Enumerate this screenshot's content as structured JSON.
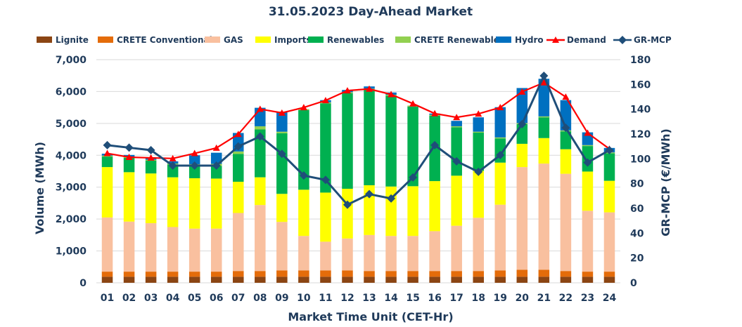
{
  "chart_data": {
    "type": "bar",
    "title": "31.05.2023  Day-Ahead Market",
    "xlabel": "Market Time Unit (CET-Hr)",
    "ylabel": "Volume (MWh)",
    "y2label": "GR-MCP (€/MWh)",
    "ylim": [
      0,
      7000
    ],
    "y2lim": [
      0,
      180
    ],
    "yticks": [
      "0",
      "1,000",
      "2,000",
      "3,000",
      "4,000",
      "5,000",
      "6,000",
      "7,000"
    ],
    "y2ticks": [
      "0",
      "20",
      "40",
      "60",
      "80",
      "100",
      "120",
      "140",
      "160",
      "180"
    ],
    "categories": [
      "01",
      "02",
      "03",
      "04",
      "05",
      "06",
      "07",
      "08",
      "09",
      "10",
      "11",
      "12",
      "13",
      "14",
      "15",
      "16",
      "17",
      "18",
      "19",
      "20",
      "21",
      "22",
      "23",
      "24"
    ],
    "legend_position": "top",
    "series": [
      {
        "name": "Lignite",
        "kind": "bar",
        "color": "#8b4513",
        "values": [
          190,
          190,
          190,
          190,
          190,
          190,
          190,
          190,
          190,
          190,
          190,
          190,
          190,
          190,
          190,
          190,
          190,
          190,
          190,
          190,
          190,
          190,
          190,
          190
        ]
      },
      {
        "name": "CRETE Conventional",
        "kind": "bar",
        "color": "#e46c0a",
        "values": [
          160,
          160,
          160,
          160,
          160,
          160,
          180,
          180,
          200,
          200,
          200,
          200,
          180,
          180,
          180,
          180,
          180,
          180,
          200,
          220,
          220,
          180,
          160,
          160
        ]
      },
      {
        "name": "GAS",
        "kind": "bar",
        "color": "#f9c09f",
        "values": [
          1700,
          1570,
          1520,
          1400,
          1350,
          1350,
          1820,
          2070,
          1520,
          1080,
          900,
          1000,
          1130,
          1100,
          1100,
          1250,
          1420,
          1670,
          2060,
          3220,
          3330,
          3050,
          1910,
          1860
        ]
      },
      {
        "name": "Imports",
        "kind": "bar",
        "color": "#ffff00",
        "values": [
          1580,
          1550,
          1560,
          1560,
          1580,
          1570,
          980,
          870,
          880,
          1450,
          1540,
          1560,
          1560,
          1550,
          1560,
          1570,
          1570,
          1470,
          1320,
          730,
          800,
          770,
          1230,
          990
        ]
      },
      {
        "name": "Renewables",
        "kind": "bar",
        "color": "#00b050",
        "values": [
          330,
          450,
          400,
          400,
          400,
          400,
          870,
          1500,
          1900,
          2500,
          2800,
          3000,
          3000,
          2850,
          2500,
          2050,
          1520,
          1200,
          760,
          620,
          650,
          560,
          800,
          860
        ]
      },
      {
        "name": "CRETE Renewables",
        "kind": "bar",
        "color": "#92d050",
        "values": [
          30,
          30,
          30,
          30,
          40,
          60,
          80,
          100,
          50,
          30,
          30,
          30,
          30,
          30,
          30,
          30,
          30,
          30,
          30,
          30,
          30,
          30,
          30,
          30
        ]
      },
      {
        "name": "Hydro",
        "kind": "bar",
        "color": "#0070c0",
        "values": [
          60,
          60,
          60,
          70,
          280,
          350,
          580,
          580,
          630,
          0,
          70,
          70,
          70,
          70,
          0,
          40,
          170,
          450,
          950,
          1100,
          1180,
          950,
          400,
          140
        ]
      },
      {
        "name": "Demand",
        "kind": "line",
        "color": "#ff0000",
        "values": [
          4060,
          3940,
          3920,
          3900,
          4060,
          4230,
          4660,
          5450,
          5330,
          5500,
          5720,
          6030,
          6080,
          5910,
          5620,
          5310,
          5190,
          5300,
          5500,
          5990,
          6280,
          5830,
          4700,
          4200
        ]
      },
      {
        "name": "GR-MCP",
        "kind": "line",
        "axis": "right",
        "color": "#1f4e79",
        "values": [
          111,
          109,
          107,
          94.5,
          94.5,
          94.5,
          110,
          118,
          104,
          86.5,
          83,
          63,
          71.5,
          68,
          85,
          111,
          98,
          89.5,
          103,
          128,
          167,
          125,
          97,
          107
        ]
      }
    ]
  }
}
